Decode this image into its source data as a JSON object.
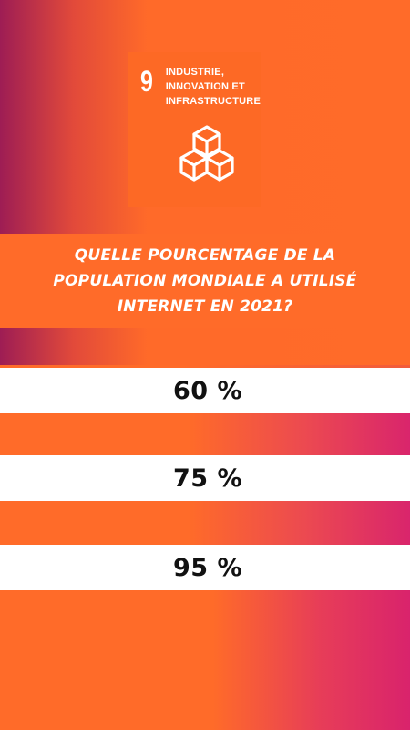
{
  "sdg": {
    "number": "9",
    "title_line_1": "INDUSTRIE,",
    "title_line_2": "INNOVATION ET",
    "title_line_3": "INFRASTRUCTURE",
    "icon": "stacked-cubes-icon",
    "color": "#fd6925"
  },
  "question": {
    "line_1": "QUELLE POURCENTAGE DE LA",
    "line_2": "POPULATION MONDIALE A UTILISÉ",
    "line_3": "INTERNET EN 2021?"
  },
  "answers": [
    {
      "label": "60 %"
    },
    {
      "label": "75 %"
    },
    {
      "label": "95 %"
    }
  ],
  "colors": {
    "orange": "#ff6b29",
    "magenta": "#d9236c",
    "plum": "#9e1d54",
    "answer_background": "#ffffff",
    "answer_text": "#111111"
  }
}
